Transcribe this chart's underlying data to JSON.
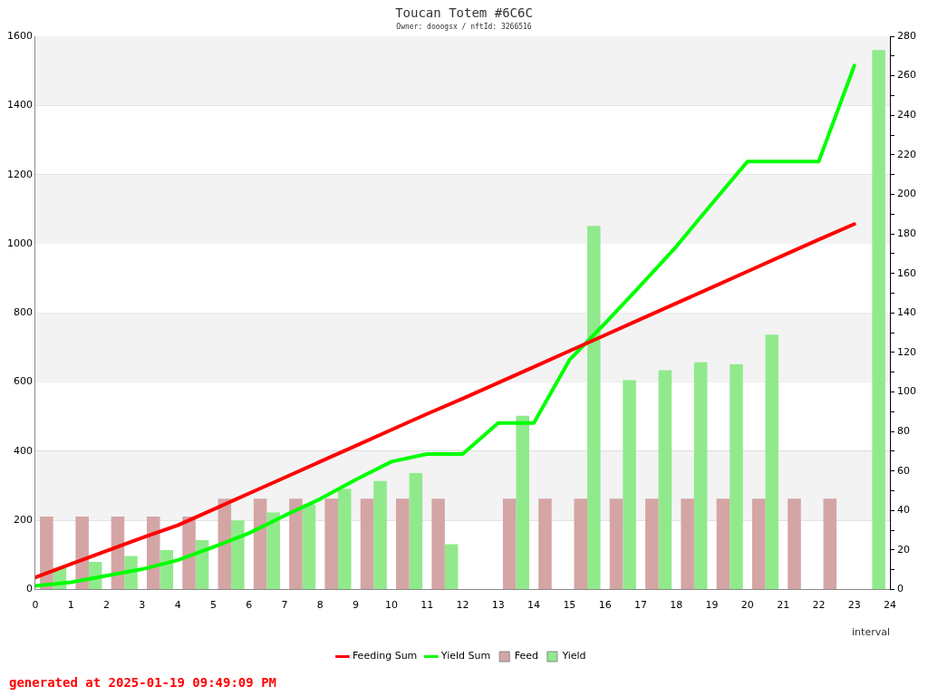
{
  "chart_data": {
    "type": "bar",
    "title": "Toucan Totem #6C6C",
    "subtitle": "Owner: dooogsx / nftId: 3266516",
    "xlabel": "interval",
    "annotations": [
      "generated at 2025-01-19 09:49:09 PM"
    ],
    "xlim": [
      0,
      24
    ],
    "xticks": [
      0,
      1,
      2,
      3,
      4,
      5,
      6,
      7,
      8,
      9,
      10,
      11,
      12,
      13,
      14,
      15,
      16,
      17,
      18,
      19,
      20,
      21,
      22,
      23,
      24
    ],
    "ylim": [
      0,
      1600
    ],
    "yticks": [
      0,
      200,
      400,
      600,
      800,
      1000,
      1200,
      1400,
      1600
    ],
    "y2lim": [
      0,
      280
    ],
    "y2ticks": [
      0,
      {
        "value": 10,
        "label": null
      },
      20,
      {
        "value": 30,
        "label": null
      },
      40,
      {
        "value": 50,
        "label": null
      },
      60,
      {
        "value": 70,
        "label": null
      },
      80,
      {
        "value": 90,
        "label": null
      },
      100,
      {
        "value": 110,
        "label": null
      },
      120,
      {
        "value": 130,
        "label": null
      },
      140,
      {
        "value": 150,
        "label": null
      },
      160,
      {
        "value": 170,
        "label": null
      },
      180,
      {
        "value": 190,
        "label": null
      },
      200,
      {
        "value": 210,
        "label": null
      },
      220,
      {
        "value": 230,
        "label": null
      },
      240,
      {
        "value": 250,
        "label": null
      },
      260,
      {
        "value": 270,
        "label": null
      },
      280
    ],
    "grid": "y",
    "legend": "bottom",
    "series": [
      {
        "name": "Feeding Sum",
        "type": "line",
        "color": "#ff0000",
        "x": [
          0,
          1,
          2,
          3,
          4,
          5,
          6,
          7,
          8,
          9,
          10,
          11,
          12,
          13,
          14,
          15,
          16,
          17,
          18,
          19,
          20,
          21,
          22,
          23
        ],
        "values": [
          35,
          74,
          112,
          150,
          186,
          232,
          278,
          324,
          370,
          416,
          462,
          508,
          552,
          598,
          644,
          690,
          736,
          782,
          828,
          874,
          920,
          966,
          1012,
          1057
        ]
      },
      {
        "name": "Yield Sum",
        "type": "line",
        "color": "#00ff00",
        "x": [
          0,
          1,
          2,
          3,
          4,
          5,
          6,
          7,
          8,
          9,
          10,
          11,
          12,
          13,
          14,
          15,
          16,
          17,
          18,
          19,
          20,
          21,
          22,
          23
        ],
        "values": [
          11,
          21,
          40,
          59,
          85,
          123,
          163,
          214,
          262,
          318,
          370,
          392,
          392,
          482,
          482,
          664,
          770,
          880,
          992,
          1116,
          1238,
          1238,
          1238,
          1515
        ]
      },
      {
        "name": "Feed",
        "axis": "y2",
        "color": "#d4a5a5",
        "x": [
          0.5,
          1.5,
          2.5,
          3.5,
          4.5,
          5.5,
          6.5,
          7.5,
          8.5,
          9.5,
          10.5,
          11.5,
          13.5,
          14.5,
          15.5,
          16.5,
          17.5,
          18.5,
          19.5,
          20.5,
          21.5,
          22.5
        ],
        "values": [
          37,
          37,
          37,
          37,
          37,
          46,
          46,
          46,
          46,
          46,
          46,
          46,
          46,
          46,
          46,
          46,
          46,
          46,
          46,
          46,
          46,
          46
        ]
      },
      {
        "name": "Yield",
        "axis": "y2",
        "color": "#90ea8c",
        "x": [
          0.5,
          1.5,
          2.5,
          3.5,
          4.5,
          5.5,
          6.5,
          7.5,
          8.5,
          9.5,
          10.5,
          11.5,
          13.5,
          15.5,
          16.5,
          17.5,
          18.5,
          19.5,
          20.5,
          23.5
        ],
        "values": [
          11,
          14,
          17,
          20,
          25,
          35,
          39,
          43,
          51,
          55,
          59,
          23,
          88,
          184,
          106,
          111,
          115,
          114,
          129,
          273
        ]
      }
    ]
  }
}
